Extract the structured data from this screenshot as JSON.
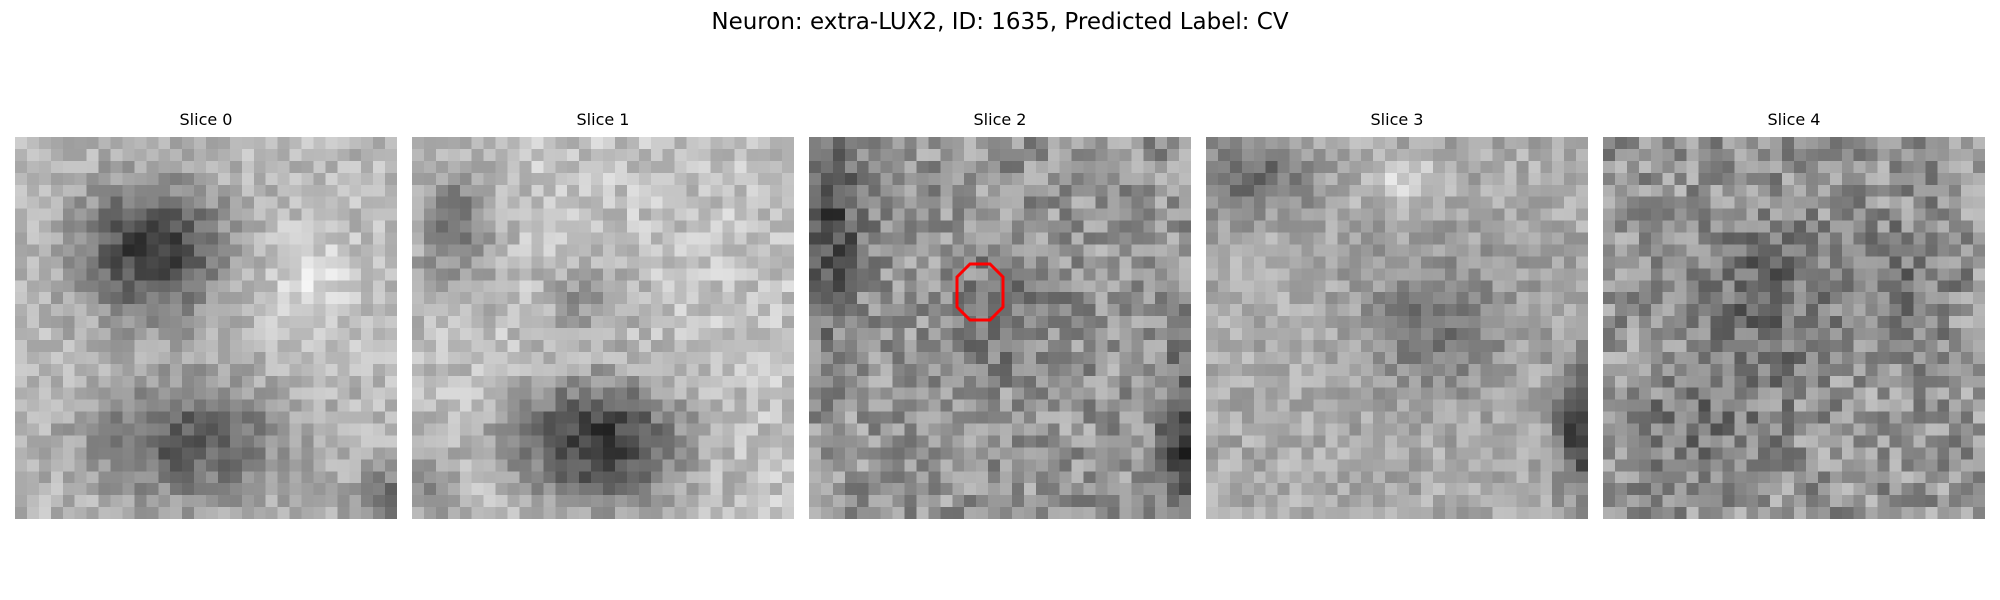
{
  "figure": {
    "title": "Neuron: extra-LUX2, ID: 1635, Predicted Label: CV"
  },
  "colormap": "gray",
  "annotation": {
    "color": "#ff0000",
    "shape": "octagon",
    "slice_index": 2
  },
  "slices": [
    {
      "title": "Slice 0"
    },
    {
      "title": "Slice 1"
    },
    {
      "title": "Slice 2"
    },
    {
      "title": "Slice 3"
    },
    {
      "title": "Slice 4"
    }
  ]
}
